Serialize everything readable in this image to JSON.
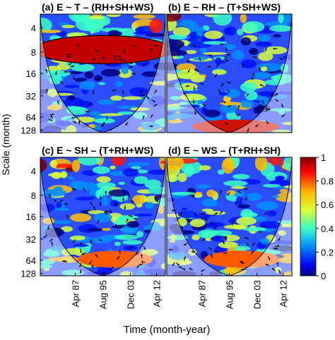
{
  "figure": {
    "ylabel": "Scale (month)",
    "xlabel": "Time (month-year)"
  },
  "chart_data": [
    {
      "type": "heatmap",
      "title": "(a) E ~ T  –  (RH+SH+WS)",
      "panel": "a",
      "y_ticks": [
        "4",
        "8",
        "16",
        "32",
        "64",
        "128"
      ],
      "x_ticks": [],
      "grid": false
    },
    {
      "type": "heatmap",
      "title": "(b) E ~ RH  –  (T+SH+WS)",
      "panel": "b",
      "y_ticks": [],
      "x_ticks": [],
      "grid": false
    },
    {
      "type": "heatmap",
      "title": "(c) E ~ SH  –  (T+RH+WS)",
      "panel": "c",
      "y_ticks": [
        "4",
        "8",
        "16",
        "32",
        "64",
        "128"
      ],
      "x_ticks": [
        "Apr 87",
        "Aug 95",
        "Dec 03",
        "Apr 12"
      ],
      "grid": false
    },
    {
      "type": "heatmap",
      "title": "(d) E ~ WS  –  (T+RH+SH)",
      "panel": "d",
      "y_ticks": [],
      "x_ticks": [
        "Apr 87",
        "Aug 95",
        "Dec 03",
        "Apr 12"
      ],
      "grid": false
    }
  ],
  "colorbar": {
    "ticks": [
      "1",
      "0.8",
      "0.6",
      "0.4",
      "0.2",
      "0"
    ],
    "range": [
      0,
      1
    ],
    "colors": [
      "#7f0000",
      "#ff2a00",
      "#ffd700",
      "#7fff7f",
      "#00d4ff",
      "#0033ff",
      "#00007f"
    ]
  }
}
